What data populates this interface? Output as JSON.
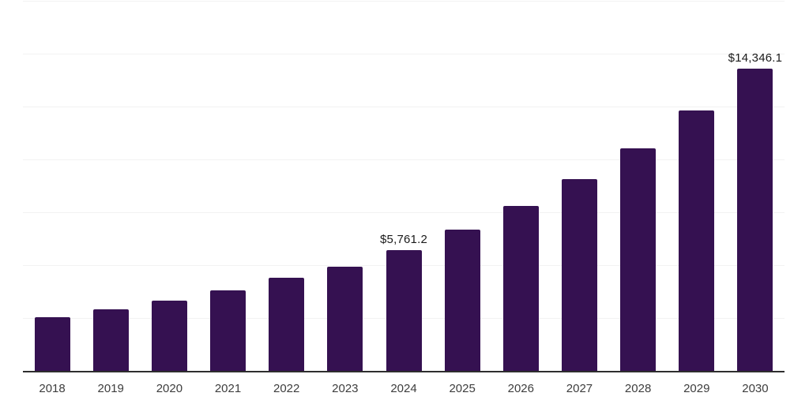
{
  "chart_data": {
    "type": "bar",
    "title": "",
    "xlabel": "",
    "ylabel": "",
    "categories": [
      "2018",
      "2019",
      "2020",
      "2021",
      "2022",
      "2023",
      "2024",
      "2025",
      "2026",
      "2027",
      "2028",
      "2029",
      "2030"
    ],
    "values": [
      2570,
      2950,
      3360,
      3840,
      4440,
      4970,
      5761.2,
      6710,
      7830,
      9100,
      10560,
      12350,
      14346.1
    ],
    "annotations": [
      {
        "category": "2024",
        "text": "$5,761.2"
      },
      {
        "category": "2030",
        "text": "$14,346.1"
      }
    ],
    "ylim": [
      0,
      17500
    ],
    "gridline_step": 2500,
    "grid": true,
    "y_axis_labels_visible": false,
    "legend": null,
    "colors": {
      "background": "#ffffff",
      "bar": "#351151",
      "axis": "#2e2e2e",
      "gridline": "#f2f2f2",
      "data_label": "#1a1a1a",
      "tick_label": "#3d3d3d"
    }
  }
}
